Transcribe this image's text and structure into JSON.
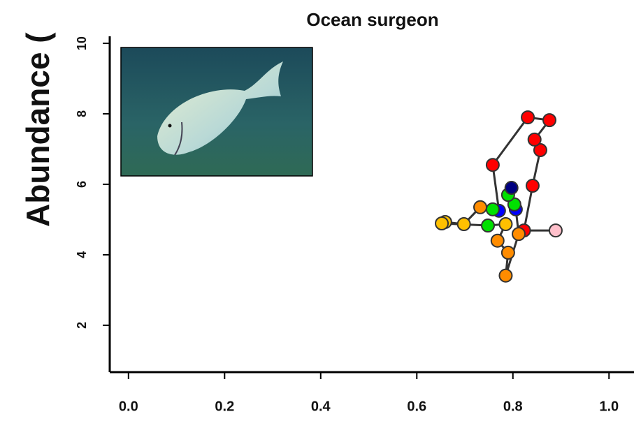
{
  "chart_data": {
    "type": "scatter",
    "title": "Ocean surgeon",
    "y_label": "Abundance (",
    "x": [
      0.889,
      0.823,
      0.841,
      0.857,
      0.845,
      0.876,
      0.831,
      0.758,
      0.771,
      0.758,
      0.732,
      0.698,
      0.659,
      0.652,
      0.748,
      0.785,
      0.768,
      0.79,
      0.785,
      0.812,
      0.806,
      0.803,
      0.79,
      0.797
    ],
    "values": [
      4.69,
      4.69,
      5.96,
      6.97,
      7.27,
      7.82,
      7.9,
      6.55,
      5.25,
      5.29,
      5.35,
      4.87,
      4.93,
      4.89,
      4.83,
      4.87,
      4.4,
      4.06,
      3.41,
      4.59,
      5.29,
      5.43,
      5.7,
      5.9
    ],
    "colors": [
      "#ffc0cb",
      "#ff0000",
      "#ff0000",
      "#ff0000",
      "#ff0000",
      "#ff0000",
      "#ff0000",
      "#ff0000",
      "#0000ff",
      "#00e000",
      "#ff8c00",
      "#ffc000",
      "#ffc000",
      "#ffc000",
      "#00e000",
      "#ffc000",
      "#ff8c00",
      "#ff8c00",
      "#ff8c00",
      "#ff8c00",
      "#0000ff",
      "#00e000",
      "#00e000",
      "#000080"
    ],
    "line_color": "#333333",
    "connected": true,
    "xlim": [
      -0.039,
      1.052
    ],
    "ylim": [
      0.67,
      10.2
    ],
    "xticks": [
      {
        "value": 0,
        "label": "0.0"
      },
      {
        "value": 0.2,
        "label": "0.2"
      },
      {
        "value": 0.4,
        "label": "0.4"
      },
      {
        "value": 0.6,
        "label": "0.6"
      },
      {
        "value": 0.8,
        "label": "0.8"
      },
      {
        "value": 1,
        "label": "1.0"
      }
    ],
    "yticks": [
      2,
      4,
      6,
      8,
      10
    ]
  }
}
